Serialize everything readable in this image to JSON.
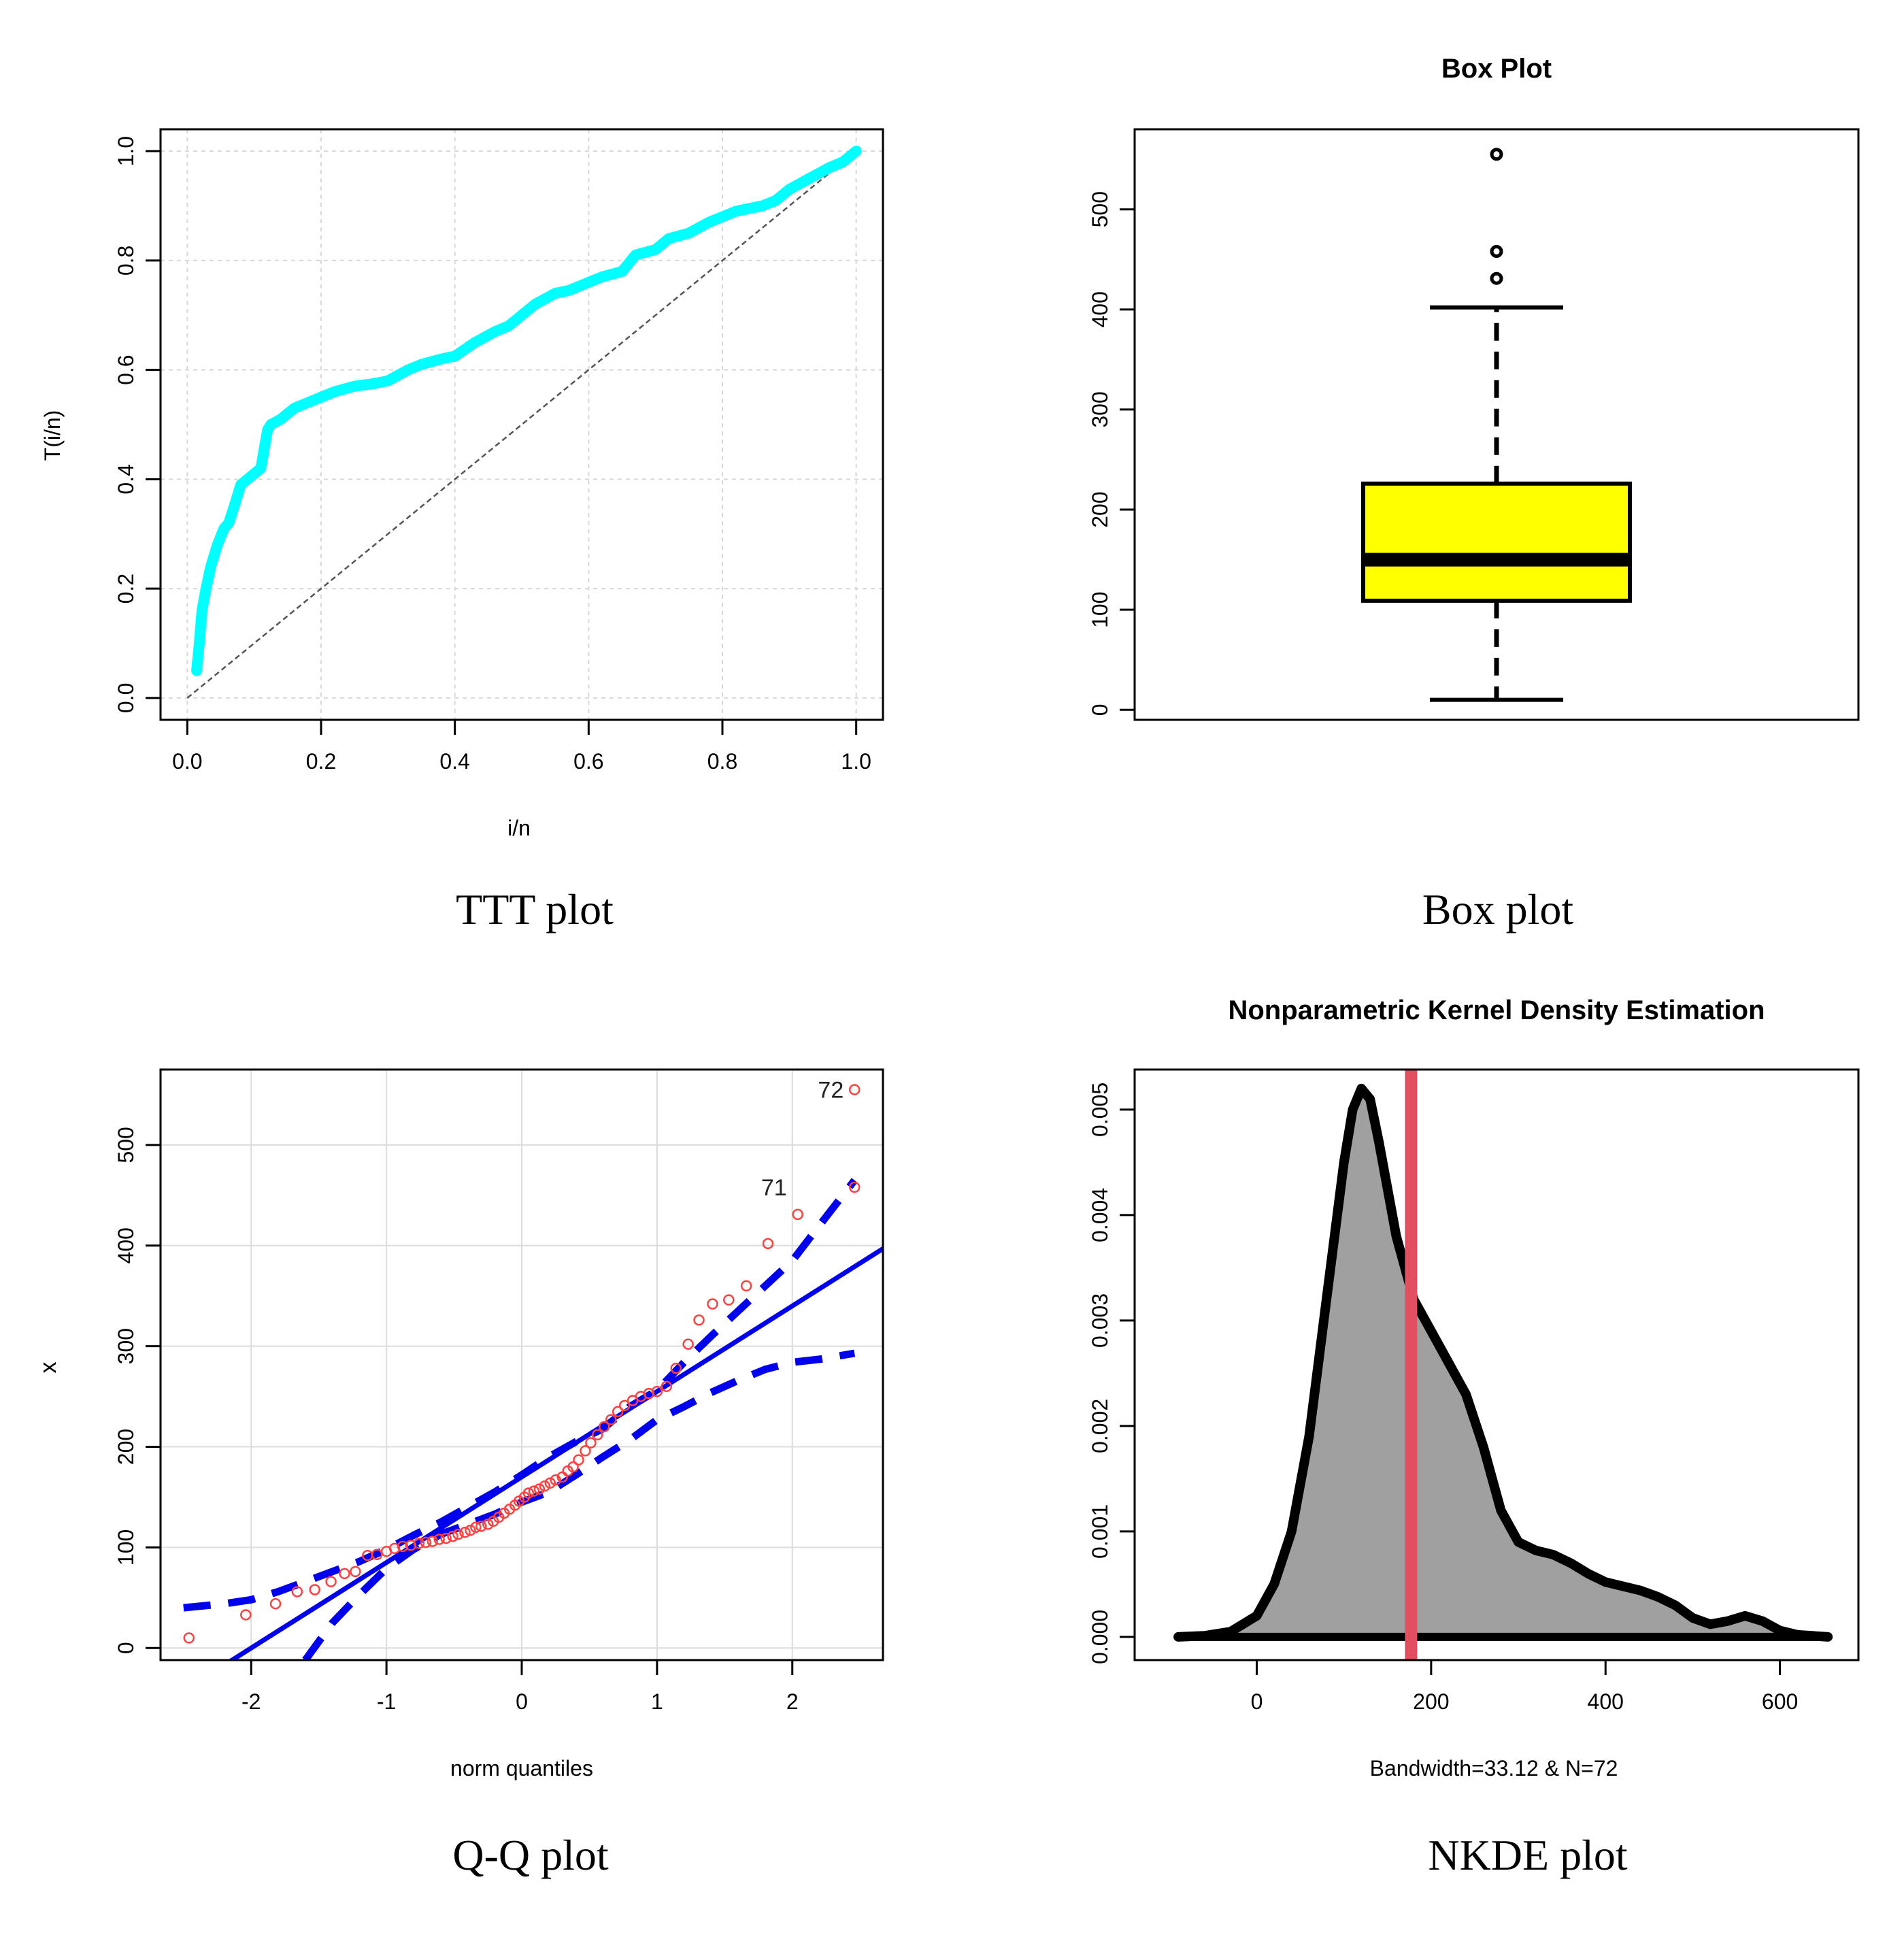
{
  "captions": {
    "ttt": "TTT plot",
    "box": "Box plot",
    "qq": "Q-Q plot",
    "nkde": "NKDE plot"
  },
  "chart_data": [
    {
      "id": "ttt",
      "type": "line",
      "title": "",
      "xlabel": "i/n",
      "ylabel": "T(i/n)",
      "xlim": [
        0,
        1
      ],
      "ylim": [
        0,
        1
      ],
      "xticks": [
        "0.0",
        "0.2",
        "0.4",
        "0.6",
        "0.8",
        "1.0"
      ],
      "yticks": [
        "0.0",
        "0.2",
        "0.4",
        "0.6",
        "0.8",
        "1.0"
      ],
      "grid": true,
      "colors": {
        "curve": "#00ffff",
        "reference": "#555555"
      },
      "series": [
        {
          "name": "TTT curve",
          "x": [
            0.014,
            0.018,
            0.022,
            0.028,
            0.035,
            0.045,
            0.055,
            0.062,
            0.07,
            0.08,
            0.09,
            0.1,
            0.11,
            0.12,
            0.125,
            0.14,
            0.16,
            0.18,
            0.2,
            0.22,
            0.25,
            0.28,
            0.3,
            0.33,
            0.35,
            0.38,
            0.4,
            0.43,
            0.46,
            0.48,
            0.5,
            0.52,
            0.55,
            0.57,
            0.6,
            0.62,
            0.65,
            0.67,
            0.7,
            0.72,
            0.75,
            0.78,
            0.82,
            0.86,
            0.88,
            0.9,
            0.93,
            0.96,
            0.98,
            1.0
          ],
          "y": [
            0.05,
            0.1,
            0.16,
            0.2,
            0.24,
            0.28,
            0.31,
            0.32,
            0.35,
            0.39,
            0.4,
            0.41,
            0.42,
            0.49,
            0.5,
            0.51,
            0.53,
            0.54,
            0.55,
            0.56,
            0.57,
            0.575,
            0.58,
            0.6,
            0.61,
            0.62,
            0.625,
            0.65,
            0.67,
            0.68,
            0.7,
            0.72,
            0.74,
            0.745,
            0.76,
            0.77,
            0.78,
            0.81,
            0.82,
            0.84,
            0.85,
            0.87,
            0.89,
            0.9,
            0.91,
            0.93,
            0.95,
            0.97,
            0.98,
            1.0
          ]
        },
        {
          "name": "reference",
          "x": [
            0,
            1
          ],
          "y": [
            0,
            1
          ]
        }
      ]
    },
    {
      "id": "box",
      "type": "box",
      "title": "Box Plot",
      "xlabel": "",
      "ylabel": "",
      "ylim": [
        -10,
        580
      ],
      "yticks": [
        "0",
        "100",
        "200",
        "300",
        "400",
        "500"
      ],
      "colors": {
        "fill": "#ffff00",
        "stroke": "#000000"
      },
      "stats": {
        "min": 10,
        "q1": 109,
        "median": 150,
        "q3": 226,
        "max": 402
      },
      "outliers": [
        431,
        458,
        555
      ]
    },
    {
      "id": "qq",
      "type": "scatter",
      "title": "",
      "xlabel": "norm quantiles",
      "ylabel": "x",
      "xlim": [
        -2.67,
        2.67
      ],
      "ylim": [
        -12,
        575
      ],
      "xticks": [
        "-2",
        "-1",
        "0",
        "1",
        "2"
      ],
      "yticks": [
        "0",
        "100",
        "200",
        "300",
        "400",
        "500"
      ],
      "grid": true,
      "colors": {
        "points": "#ff4040",
        "line": "#0000ee"
      },
      "point_labels": [
        {
          "text": "72",
          "x": 2.46,
          "y": 555
        },
        {
          "text": "71",
          "x": 2.04,
          "y": 458
        }
      ],
      "points": {
        "x": [
          -2.46,
          -2.04,
          -1.82,
          -1.66,
          -1.53,
          -1.41,
          -1.31,
          -1.23,
          -1.14,
          -1.07,
          -1.0,
          -0.94,
          -0.88,
          -0.82,
          -0.76,
          -0.71,
          -0.66,
          -0.61,
          -0.56,
          -0.51,
          -0.47,
          -0.42,
          -0.38,
          -0.34,
          -0.3,
          -0.25,
          -0.21,
          -0.17,
          -0.13,
          -0.09,
          -0.05,
          -0.02,
          0.02,
          0.05,
          0.09,
          0.13,
          0.17,
          0.21,
          0.25,
          0.3,
          0.34,
          0.38,
          0.42,
          0.47,
          0.51,
          0.56,
          0.61,
          0.66,
          0.71,
          0.76,
          0.82,
          0.88,
          0.94,
          1.0,
          1.07,
          1.14,
          1.23,
          1.31,
          1.41,
          1.53,
          1.66,
          1.82,
          2.04,
          2.46
        ],
        "y": [
          10,
          33,
          44,
          56,
          58,
          66,
          74,
          76,
          92,
          93,
          96,
          99,
          101,
          102,
          104,
          105,
          106,
          108,
          109,
          111,
          113,
          115,
          117,
          120,
          121,
          123,
          126,
          130,
          134,
          138,
          142,
          146,
          150,
          154,
          156,
          158,
          161,
          164,
          167,
          170,
          176,
          180,
          187,
          196,
          204,
          212,
          220,
          227,
          235,
          241,
          246,
          250,
          253,
          255,
          260,
          278,
          302,
          326,
          342,
          346,
          360,
          402,
          431,
          458
        ]
      },
      "extra_point": {
        "x": 2.46,
        "y": 555
      },
      "reference_line": {
        "intercept": 170,
        "slope": 85
      },
      "envelope_lower": {
        "x": [
          -1.6,
          -1.4,
          -1.2,
          -1.0,
          -0.8,
          -0.6,
          -0.4,
          -0.2,
          0.0,
          0.2,
          0.4,
          0.6,
          0.8,
          1.0,
          1.2,
          1.4,
          1.6,
          1.8,
          2.0,
          2.2,
          2.46
        ],
        "y": [
          -12,
          25,
          53,
          79,
          98,
          113,
          123,
          133,
          145,
          155,
          172,
          190,
          207,
          227,
          240,
          254,
          266,
          277,
          284,
          287,
          293
        ]
      },
      "envelope_upper": {
        "x": [
          -2.5,
          -2.2,
          -2.0,
          -1.8,
          -1.6,
          -1.4,
          -1.2,
          -1.0,
          -0.8,
          -0.6,
          -0.4,
          -0.2,
          0.0,
          0.2,
          0.4,
          0.6,
          0.8,
          1.0,
          1.2,
          1.4,
          1.6,
          1.8,
          2.0,
          2.2,
          2.46
        ],
        "y": [
          40,
          44,
          48,
          56,
          66,
          76,
          86,
          98,
          112,
          125,
          140,
          155,
          172,
          190,
          205,
          218,
          240,
          256,
          284,
          310,
          335,
          360,
          385,
          420,
          465
        ]
      }
    },
    {
      "id": "nkde",
      "type": "area",
      "title": "Nonparametric Kernel Density Estimation",
      "xlabel": "Bandwidth=33.12 & N=72",
      "ylabel": "",
      "xlim": [
        -140,
        690
      ],
      "ylim": [
        -0.00022,
        0.00538
      ],
      "xticks": [
        "0",
        "200",
        "400",
        "600"
      ],
      "yticks": [
        "0.000",
        "0.001",
        "0.002",
        "0.003",
        "0.004",
        "0.005"
      ],
      "colors": {
        "fill": "#a0a0a0",
        "stroke": "#000000",
        "mean_line": "#e05060"
      },
      "mean_line_x": 177,
      "series": [
        {
          "name": "density",
          "x": [
            -90,
            -60,
            -30,
            0,
            20,
            40,
            60,
            80,
            100,
            110,
            120,
            130,
            140,
            160,
            180,
            200,
            220,
            240,
            260,
            280,
            300,
            320,
            340,
            360,
            380,
            400,
            440,
            460,
            480,
            500,
            520,
            540,
            560,
            580,
            600,
            620,
            655
          ],
          "y": [
            0.0,
            1e-05,
            5e-05,
            0.0002,
            0.0005,
            0.001,
            0.0019,
            0.0032,
            0.0045,
            0.005,
            0.0052,
            0.0051,
            0.0047,
            0.0038,
            0.0032,
            0.0029,
            0.0026,
            0.0023,
            0.0018,
            0.0012,
            0.0009,
            0.00082,
            0.00078,
            0.0007,
            0.0006,
            0.00052,
            0.00044,
            0.00038,
            0.0003,
            0.00018,
            0.00012,
            0.00015,
            0.0002,
            0.00015,
            6e-05,
            2e-05,
            0.0
          ]
        }
      ]
    }
  ]
}
